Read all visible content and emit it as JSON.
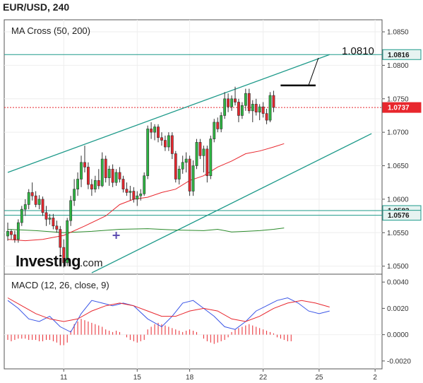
{
  "header": {
    "symbol": "EUR/USD",
    "timeframe": "240",
    "title": "EUR/USD, 240"
  },
  "logo": {
    "brand": "Investing",
    "domain": ".com"
  },
  "colors": {
    "up": "#2db642",
    "down": "#e8262d",
    "ma_fast": "#e8262d",
    "ma_slow": "#2a8a2a",
    "trend": "#1e9a8a",
    "macd": "#3a55e6",
    "signal": "#e8262d",
    "hist": "#e8262d"
  },
  "chart_data": [
    {
      "type": "candlestick",
      "panel": "price",
      "indicator_label": "MA Cross (50, 200)",
      "y_ticks": [
        "1.0850",
        "1.0800",
        "1.0750",
        "1.0700",
        "1.0650",
        "1.0600",
        "1.0550",
        "1.0500"
      ],
      "ylim": [
        1.0488,
        1.0868
      ],
      "x_ticks": [
        {
          "label": "11",
          "i": 16
        },
        {
          "label": "15",
          "i": 37
        },
        {
          "label": "18",
          "i": 52
        },
        {
          "label": "22",
          "i": 73
        },
        {
          "label": "25",
          "i": 89
        },
        {
          "label": "2",
          "i": 105
        }
      ],
      "x_count": 108,
      "candles": [
        [
          1.0545,
          1.0565,
          1.0538,
          1.0552
        ],
        [
          1.0552,
          1.0555,
          1.054,
          1.0547
        ],
        [
          1.0547,
          1.0553,
          1.0535,
          1.054
        ],
        [
          1.054,
          1.057,
          1.0535,
          1.0565
        ],
        [
          1.0565,
          1.059,
          1.056,
          1.0585
        ],
        [
          1.0585,
          1.06,
          1.0575,
          1.0592
        ],
        [
          1.0592,
          1.0615,
          1.0585,
          1.061
        ],
        [
          1.061,
          1.0625,
          1.0598,
          1.0605
        ],
        [
          1.0605,
          1.0612,
          1.0588,
          1.0592
        ],
        [
          1.0592,
          1.0606,
          1.0585,
          1.06
        ],
        [
          1.06,
          1.0604,
          1.0575,
          1.058
        ],
        [
          1.058,
          1.059,
          1.056,
          1.057
        ],
        [
          1.057,
          1.0578,
          1.0562,
          1.0572
        ],
        [
          1.0572,
          1.0578,
          1.0555,
          1.056
        ],
        [
          1.056,
          1.0568,
          1.055,
          1.0555
        ],
        [
          1.0555,
          1.056,
          1.0515,
          1.0528
        ],
        [
          1.0528,
          1.054,
          1.0498,
          1.0505
        ],
        [
          1.0505,
          1.0572,
          1.05,
          1.0568
        ],
        [
          1.0568,
          1.0605,
          1.056,
          1.0598
        ],
        [
          1.0598,
          1.063,
          1.059,
          1.0615
        ],
        [
          1.0615,
          1.064,
          1.0605,
          1.063
        ],
        [
          1.063,
          1.0665,
          1.0618,
          1.0655
        ],
        [
          1.0655,
          1.068,
          1.064,
          1.0648
        ],
        [
          1.0648,
          1.0655,
          1.0615,
          1.0622
        ],
        [
          1.0622,
          1.063,
          1.0605,
          1.0615
        ],
        [
          1.0615,
          1.0635,
          1.061,
          1.0628
        ],
        [
          1.0628,
          1.0645,
          1.0615,
          1.062
        ],
        [
          1.062,
          1.067,
          1.0618,
          1.066
        ],
        [
          1.066,
          1.0665,
          1.0625,
          1.0632
        ],
        [
          1.0632,
          1.065,
          1.062,
          1.0645
        ],
        [
          1.0645,
          1.0652,
          1.0618,
          1.0625
        ],
        [
          1.0625,
          1.0645,
          1.062,
          1.064
        ],
        [
          1.064,
          1.0648,
          1.0625,
          1.063
        ],
        [
          1.063,
          1.0635,
          1.061,
          1.0615
        ],
        [
          1.0615,
          1.0625,
          1.0605,
          1.061
        ],
        [
          1.061,
          1.062,
          1.0598,
          1.0612
        ],
        [
          1.0612,
          1.0618,
          1.0595,
          1.06
        ],
        [
          1.06,
          1.0612,
          1.059,
          1.0605
        ],
        [
          1.0605,
          1.0615,
          1.0598,
          1.0608
        ],
        [
          1.0608,
          1.064,
          1.0605,
          1.0635
        ],
        [
          1.0635,
          1.071,
          1.063,
          1.0705
        ],
        [
          1.0705,
          1.0715,
          1.069,
          1.07
        ],
        [
          1.07,
          1.0712,
          1.0688,
          1.0708
        ],
        [
          1.0708,
          1.0712,
          1.0685,
          1.0692
        ],
        [
          1.0692,
          1.07,
          1.068,
          1.0688
        ],
        [
          1.0688,
          1.0695,
          1.0672,
          1.0678
        ],
        [
          1.0678,
          1.07,
          1.0672,
          1.0695
        ],
        [
          1.0695,
          1.07,
          1.066,
          1.0668
        ],
        [
          1.0668,
          1.0672,
          1.0625,
          1.063
        ],
        [
          1.063,
          1.065,
          1.0622,
          1.0645
        ],
        [
          1.0645,
          1.0665,
          1.0638,
          1.0655
        ],
        [
          1.0655,
          1.067,
          1.064,
          1.066
        ],
        [
          1.066,
          1.0665,
          1.0605,
          1.0612
        ],
        [
          1.0612,
          1.0658,
          1.0605,
          1.065
        ],
        [
          1.065,
          1.069,
          1.0645,
          1.0685
        ],
        [
          1.0685,
          1.069,
          1.066,
          1.0665
        ],
        [
          1.0665,
          1.068,
          1.064,
          1.0675
        ],
        [
          1.0675,
          1.068,
          1.0625,
          1.0635
        ],
        [
          1.0635,
          1.0695,
          1.063,
          1.069
        ],
        [
          1.069,
          1.072,
          1.0685,
          1.0715
        ],
        [
          1.0715,
          1.0722,
          1.07,
          1.0705
        ],
        [
          1.0705,
          1.073,
          1.07,
          1.0725
        ],
        [
          1.0725,
          1.076,
          1.072,
          1.075
        ],
        [
          1.075,
          1.0758,
          1.073,
          1.0738
        ],
        [
          1.0738,
          1.0755,
          1.0732,
          1.075
        ],
        [
          1.075,
          1.0768,
          1.074,
          1.0745
        ],
        [
          1.0745,
          1.075,
          1.0715,
          1.0725
        ],
        [
          1.0725,
          1.0745,
          1.072,
          1.074
        ],
        [
          1.074,
          1.0765,
          1.0732,
          1.0758
        ],
        [
          1.0758,
          1.0765,
          1.0728,
          1.0732
        ],
        [
          1.0732,
          1.0748,
          1.0715,
          1.0742
        ],
        [
          1.0742,
          1.075,
          1.0725,
          1.073
        ],
        [
          1.073,
          1.0742,
          1.0718,
          1.0738
        ],
        [
          1.0738,
          1.0745,
          1.0722,
          1.0728
        ],
        [
          1.0728,
          1.0735,
          1.0712,
          1.0718
        ],
        [
          1.0718,
          1.076,
          1.0715,
          1.0755
        ],
        [
          1.0755,
          1.0762,
          1.073,
          1.0737
        ]
      ],
      "ma_fast": [
        [
          0,
          1.054
        ],
        [
          5,
          1.0538
        ],
        [
          10,
          1.054
        ],
        [
          16,
          1.0546
        ],
        [
          22,
          1.056
        ],
        [
          28,
          1.0575
        ],
        [
          32,
          1.0592
        ],
        [
          36,
          1.06
        ],
        [
          40,
          1.0603
        ],
        [
          44,
          1.061
        ],
        [
          48,
          1.0615
        ],
        [
          52,
          1.0628
        ],
        [
          56,
          1.0635
        ],
        [
          60,
          1.0648
        ],
        [
          64,
          1.0657
        ],
        [
          68,
          1.0668
        ],
        [
          72,
          1.0672
        ],
        [
          76,
          1.0678
        ],
        [
          79,
          1.0683
        ]
      ],
      "ma_slow": [
        [
          0,
          1.0555
        ],
        [
          8,
          1.0553
        ],
        [
          16,
          1.055
        ],
        [
          24,
          1.0552
        ],
        [
          32,
          1.0555
        ],
        [
          40,
          1.0556
        ],
        [
          48,
          1.0554
        ],
        [
          56,
          1.0553
        ],
        [
          60,
          1.0555
        ],
        [
          64,
          1.0551
        ],
        [
          68,
          1.0552
        ],
        [
          72,
          1.0553
        ],
        [
          76,
          1.0555
        ],
        [
          79,
          1.0557
        ]
      ],
      "trend_lines": [
        {
          "a": [
            0,
            1.064
          ],
          "b": [
            92,
            1.0816
          ]
        },
        {
          "a": [
            24,
            1.049
          ],
          "b": [
            104,
            1.0698
          ]
        }
      ],
      "h_lines": [
        {
          "value": 1.0816,
          "label": "1.0816",
          "color": "#1e9a8a"
        },
        {
          "value": 1.0583,
          "label": "1.0583",
          "color": "#1e9a8a"
        },
        {
          "value": 1.0576,
          "label": "1.0576",
          "color": "#1e9a8a"
        },
        {
          "value": 1.0737,
          "label": "1.0737",
          "color": "#e8262d",
          "dashed": true
        }
      ],
      "annotation": {
        "label": "1.0810",
        "resistance": 1.077,
        "from_i": 78,
        "to_i": 88
      },
      "marker": {
        "i": 31,
        "value": 1.0546
      }
    },
    {
      "type": "line",
      "panel": "macd",
      "indicator_label": "MACD (12, 26, close, 9)",
      "y_ticks": [
        "0.0040",
        "0.0020",
        "0.0000",
        "-0.0020"
      ],
      "ylim": [
        -0.0026,
        0.0046
      ],
      "x_count": 108,
      "series": [
        {
          "kind": "macd",
          "points": [
            [
              0,
              0.0026
            ],
            [
              3,
              0.002
            ],
            [
              6,
              0.0012
            ],
            [
              9,
              0.001
            ],
            [
              12,
              0.0014
            ],
            [
              15,
              0.0006
            ],
            [
              18,
              0.0002
            ],
            [
              21,
              0.0016
            ],
            [
              24,
              0.0026
            ],
            [
              27,
              0.0024
            ],
            [
              30,
              0.0022
            ],
            [
              33,
              0.0024
            ],
            [
              36,
              0.0022
            ],
            [
              40,
              0.0012
            ],
            [
              44,
              0.0006
            ],
            [
              47,
              0.0014
            ],
            [
              50,
              0.0024
            ],
            [
              53,
              0.0026
            ],
            [
              56,
              0.002
            ],
            [
              59,
              0.0014
            ],
            [
              62,
              0.0006
            ],
            [
              65,
              0.0004
            ],
            [
              68,
              0.001
            ],
            [
              71,
              0.0018
            ],
            [
              74,
              0.0022
            ],
            [
              77,
              0.0026
            ],
            [
              80,
              0.0028
            ],
            [
              83,
              0.0024
            ],
            [
              86,
              0.0018
            ],
            [
              89,
              0.0016
            ],
            [
              92,
              0.0018
            ]
          ]
        },
        {
          "kind": "signal",
          "points": [
            [
              0,
              0.0028
            ],
            [
              4,
              0.0022
            ],
            [
              8,
              0.0016
            ],
            [
              12,
              0.0012
            ],
            [
              16,
              0.001
            ],
            [
              20,
              0.0012
            ],
            [
              24,
              0.0018
            ],
            [
              28,
              0.0022
            ],
            [
              32,
              0.0024
            ],
            [
              36,
              0.0022
            ],
            [
              40,
              0.0018
            ],
            [
              44,
              0.0014
            ],
            [
              48,
              0.0014
            ],
            [
              52,
              0.0018
            ],
            [
              56,
              0.002
            ],
            [
              60,
              0.0018
            ],
            [
              64,
              0.0012
            ],
            [
              68,
              0.001
            ],
            [
              72,
              0.0014
            ],
            [
              76,
              0.002
            ],
            [
              80,
              0.0024
            ],
            [
              84,
              0.0026
            ],
            [
              88,
              0.0024
            ],
            [
              92,
              0.0021
            ]
          ]
        }
      ],
      "histogram": [
        -0.0004,
        -0.0005,
        -0.0004,
        -0.0003,
        -0.0003,
        -0.0003,
        -0.0004,
        -0.0004,
        -0.0004,
        -0.0005,
        -0.0005,
        -0.0004,
        -0.0004,
        -0.0005,
        -0.0006,
        -0.0008,
        -0.0008,
        -0.0006,
        0.0003,
        0.0008,
        0.001,
        0.0012,
        0.0011,
        0.001,
        0.0009,
        0.0008,
        0.0007,
        0.0006,
        0.0004,
        0.0003,
        0.0002,
        0.0003,
        0.0002,
        0.0,
        -0.0002,
        -0.0004,
        -0.0005,
        -0.0006,
        -0.0005,
        -0.0004,
        0.0004,
        0.0006,
        0.0008,
        0.0009,
        0.0008,
        0.0007,
        0.0006,
        0.0005,
        0.0004,
        0.0003,
        0.0002,
        0.0003,
        0.0004,
        0.0003,
        0.0002,
        0.0,
        -0.0003,
        -0.0005,
        -0.0006,
        -0.0007,
        -0.0006,
        -0.0005,
        -0.0004,
        -0.0002,
        0.0002,
        0.0004,
        0.0005,
        0.0006,
        0.0007,
        0.0008,
        0.0007,
        0.0006,
        0.0005,
        0.0004,
        0.0003,
        0.0002,
        0.0001,
        -0.0002,
        -0.0003,
        -0.0004,
        -0.0005,
        -0.0005
      ]
    }
  ]
}
